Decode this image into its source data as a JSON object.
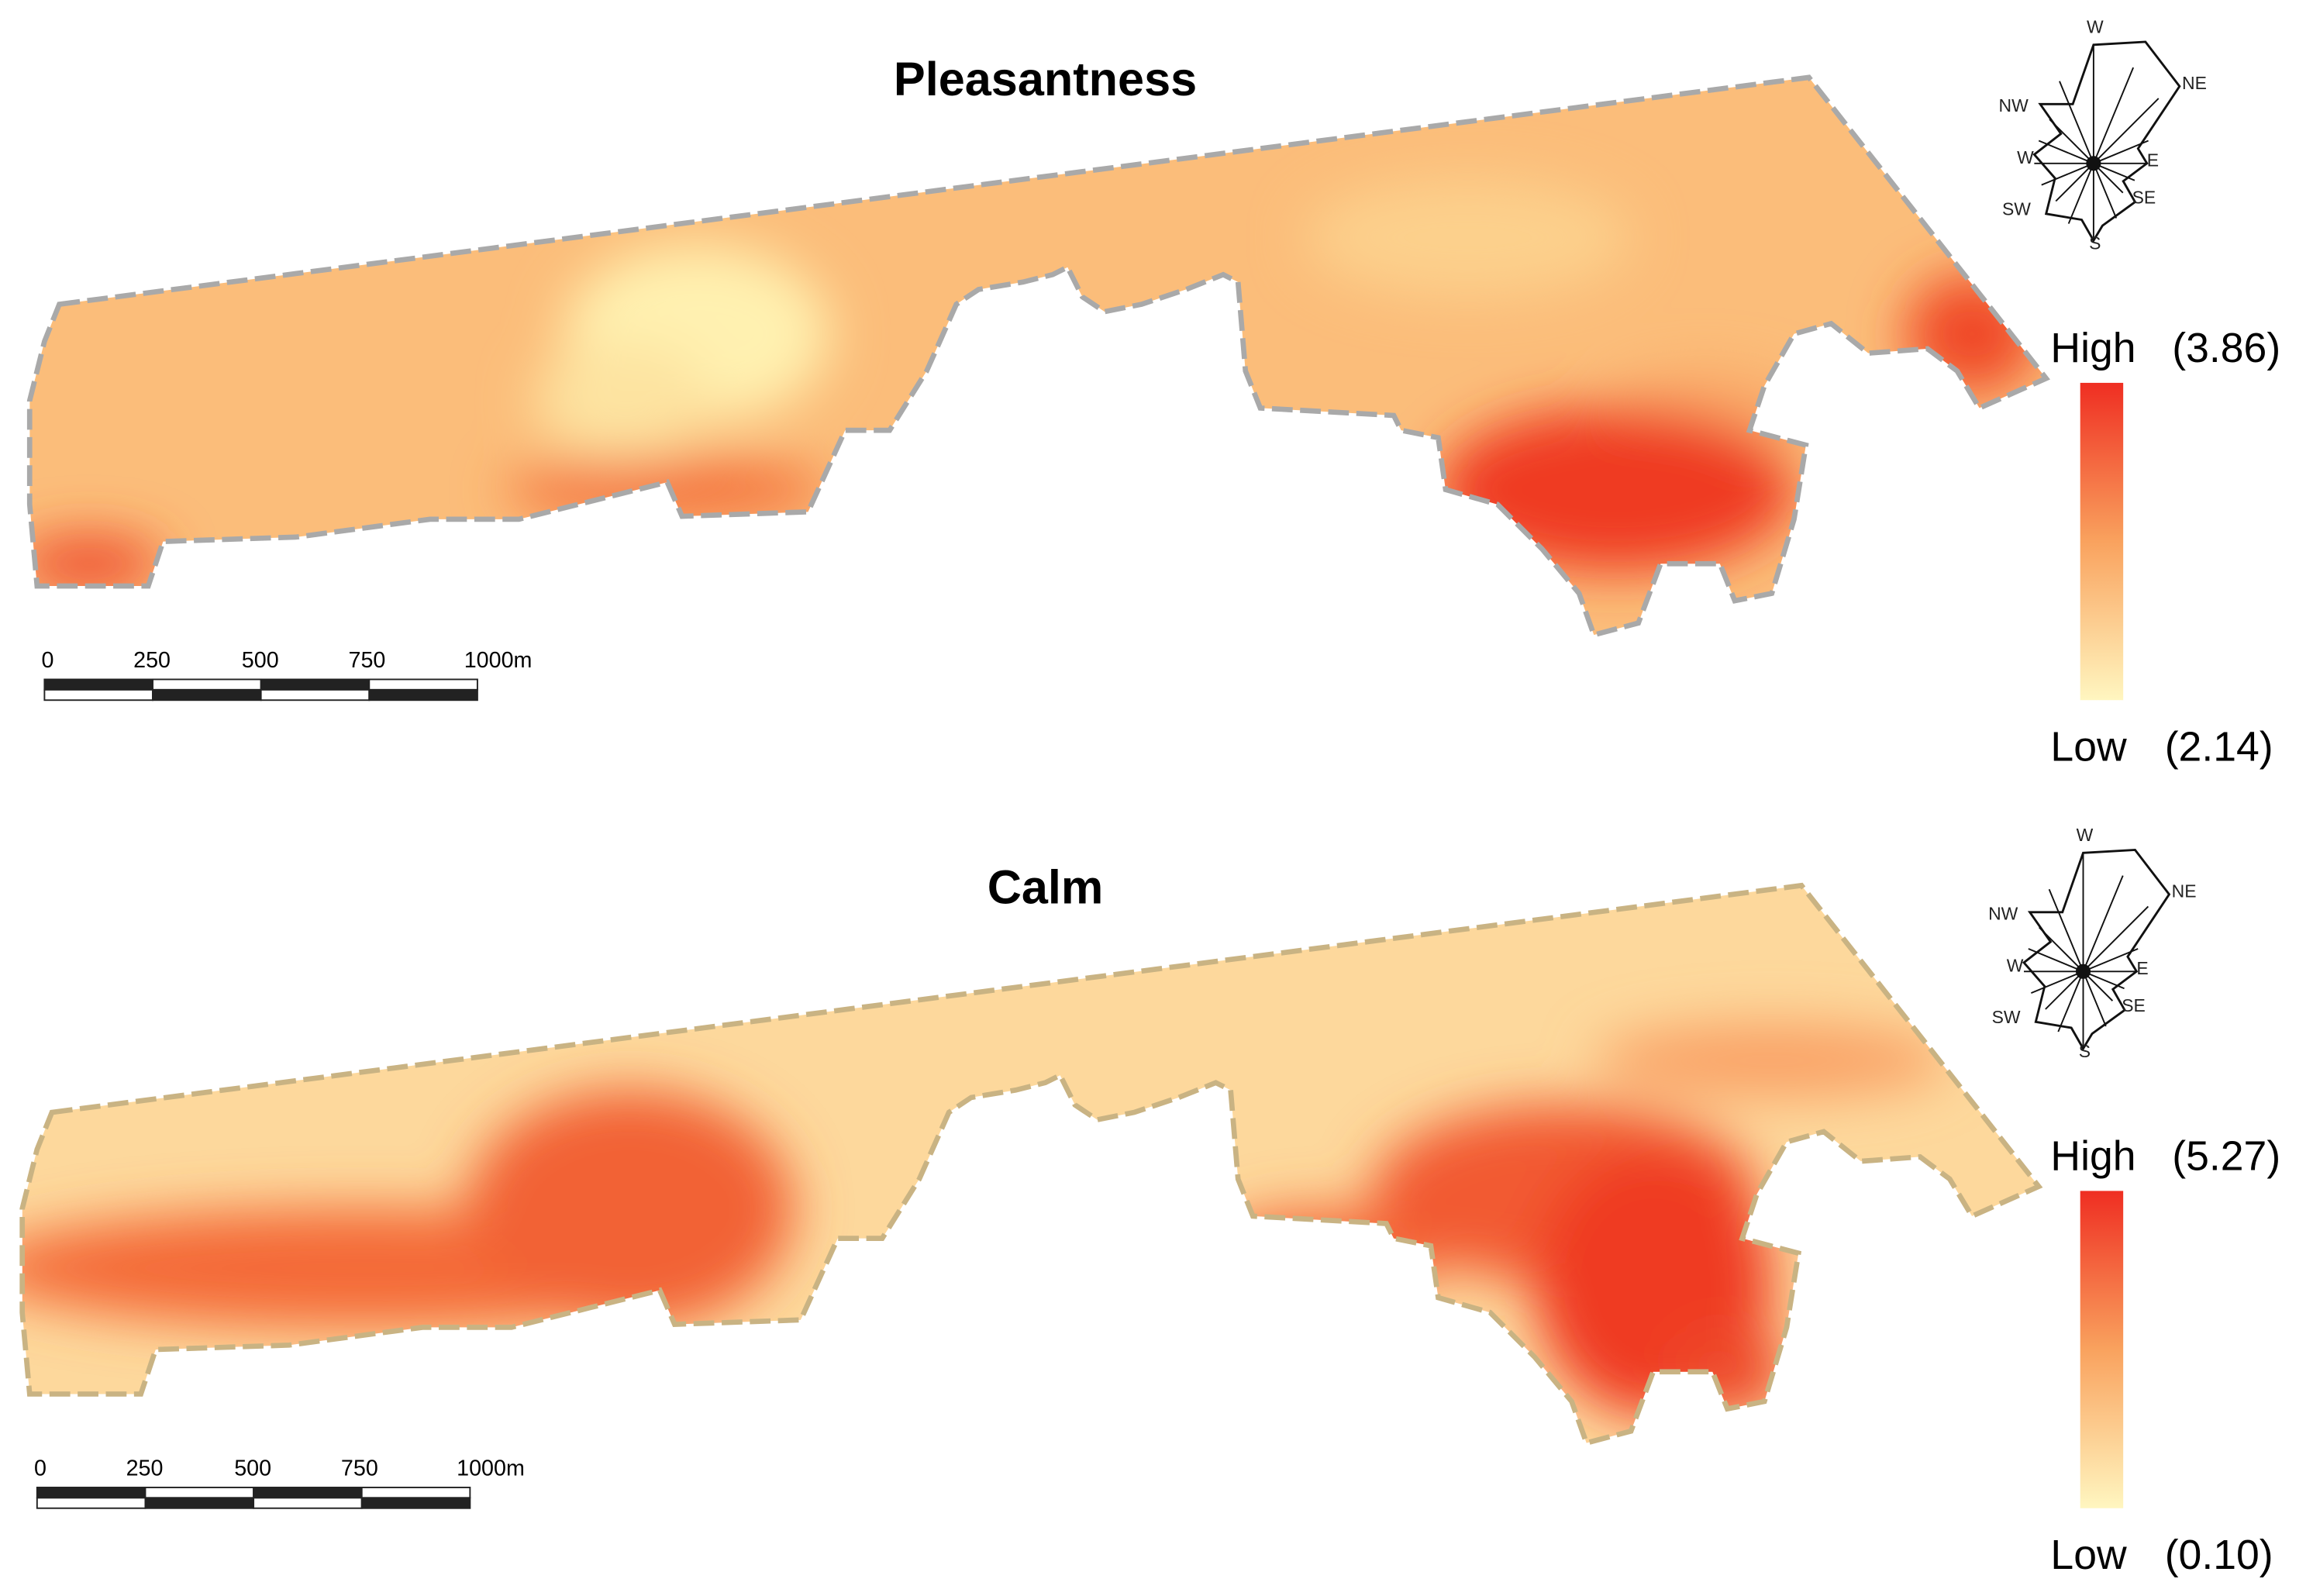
{
  "panels": [
    {
      "title": "Pleasantness",
      "legend": {
        "high": "High",
        "high_value": "(3.86)",
        "low": "Low",
        "low_value": "(2.14)"
      },
      "scale_bar": [
        "0",
        "250",
        "500",
        "750",
        "1000m"
      ],
      "compass": [
        "W",
        "NE",
        "NW",
        "W",
        "E",
        "SW",
        "SE",
        "S"
      ]
    },
    {
      "title": "Calm",
      "legend": {
        "high": "High",
        "high_value": "(5.27)",
        "low": "Low",
        "low_value": "(0.10)"
      },
      "scale_bar": [
        "0",
        "250",
        "500",
        "750",
        "1000m"
      ],
      "compass": [
        "W",
        "NE",
        "NW",
        "W",
        "E",
        "SW",
        "SE",
        "S"
      ]
    }
  ]
}
